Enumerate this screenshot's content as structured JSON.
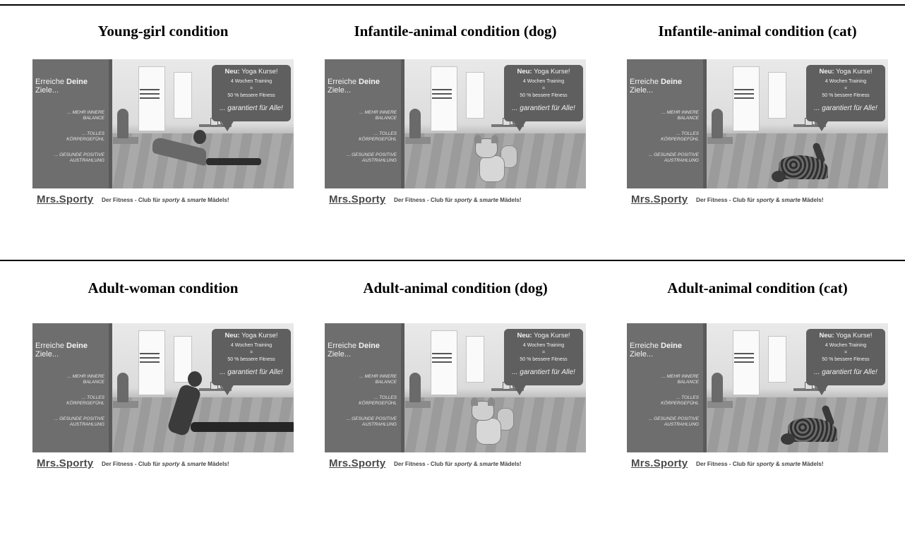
{
  "conditions": [
    {
      "title": "Young-girl condition",
      "figure": "girl"
    },
    {
      "title": "Infantile-animal condition (dog)",
      "figure": "puppy"
    },
    {
      "title": "Infantile-animal condition (cat)",
      "figure": "kitten"
    },
    {
      "title": "Adult-woman condition",
      "figure": "woman"
    },
    {
      "title": "Adult-animal condition (dog)",
      "figure": "dog"
    },
    {
      "title": "Adult-animal condition (cat)",
      "figure": "cat"
    }
  ],
  "ad": {
    "headline_prefix": "Erreiche ",
    "headline_bold": "Deine",
    "headline_rest": "Ziele...",
    "point1_a": "... MEHR INNERE",
    "point1_b": "BALANCE",
    "point2_a": "... TOLLES",
    "point2_b": "KÖRPERGEFÜHL",
    "point3_a": "... GESUNDE POSITIVE",
    "point3_b": "AUSTRAHLUNG",
    "bubble_bold": "Neu:",
    "bubble_title": " Yoga Kurse!",
    "bubble_line1": "4 Wochen Training",
    "bubble_line2": "=",
    "bubble_line3": "50 % bessere Fitness",
    "bubble_tagline": "... garantiert für Alle!",
    "logo": "Mrs.Sporty",
    "slogan_prefix": "Der Fitness - Club für ",
    "slogan_sporty": "sporty",
    "slogan_and": " & ",
    "slogan_smarte": "smarte",
    "slogan_suffix": " Mädels!"
  }
}
